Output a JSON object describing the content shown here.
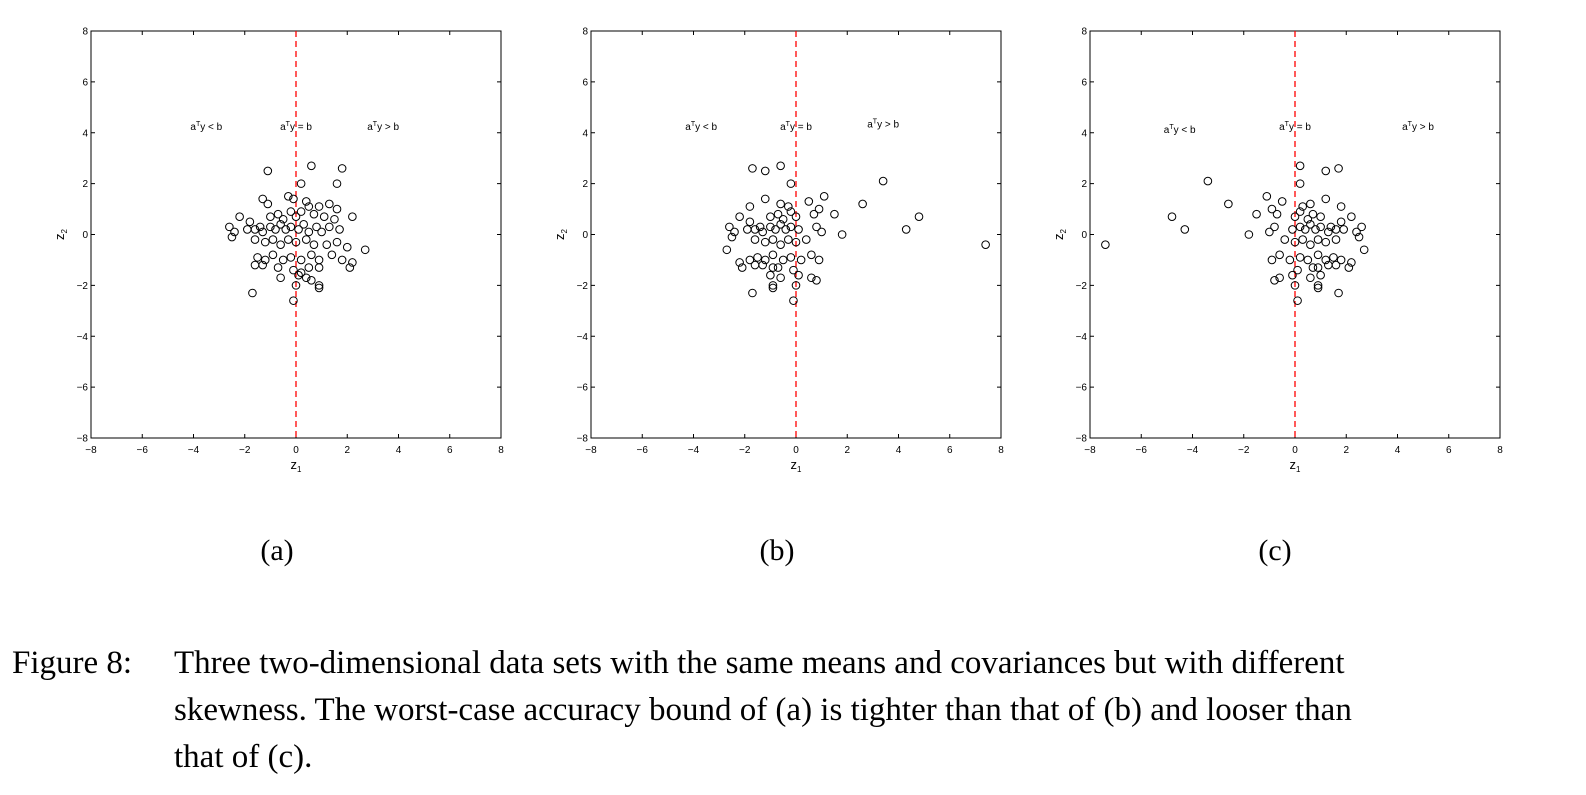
{
  "chart_data": [
    {
      "type": "scatter",
      "panel_label": "(a)",
      "xlabel": "z1",
      "ylabel": "z2",
      "xlim": [
        -8,
        8
      ],
      "ylim": [
        -8,
        8
      ],
      "ticks": [
        -8,
        -6,
        -4,
        -2,
        0,
        2,
        4,
        6,
        8
      ],
      "grid": false,
      "boundary": {
        "x": 0,
        "style": "red dashed"
      },
      "annotations": [
        {
          "label": "a^Ty < b",
          "x": -3.5,
          "y": 4.1
        },
        {
          "label": "a^Ty = b",
          "x": 0.0,
          "y": 4.1
        },
        {
          "label": "a^Ty > b",
          "x": 3.4,
          "y": 4.1
        }
      ],
      "points": [
        [
          -1.1,
          2.5
        ],
        [
          0.6,
          2.7
        ],
        [
          1.8,
          2.6
        ],
        [
          0.2,
          2.0
        ],
        [
          1.6,
          2.0
        ],
        [
          -1.3,
          1.4
        ],
        [
          -1.1,
          1.2
        ],
        [
          0.4,
          1.3
        ],
        [
          1.3,
          1.2
        ],
        [
          -0.3,
          1.5
        ],
        [
          -0.1,
          1.4
        ],
        [
          0.5,
          1.1
        ],
        [
          0.9,
          1.1
        ],
        [
          1.6,
          1.0
        ],
        [
          -2.2,
          0.7
        ],
        [
          -1.8,
          0.5
        ],
        [
          -1.4,
          0.3
        ],
        [
          -1.0,
          0.7
        ],
        [
          -0.7,
          0.8
        ],
        [
          -0.5,
          0.6
        ],
        [
          -0.2,
          0.9
        ],
        [
          0.0,
          0.7
        ],
        [
          0.2,
          0.9
        ],
        [
          0.7,
          0.8
        ],
        [
          1.1,
          0.7
        ],
        [
          1.5,
          0.6
        ],
        [
          2.2,
          0.7
        ],
        [
          -2.6,
          0.3
        ],
        [
          -2.4,
          0.1
        ],
        [
          -2.5,
          -0.1
        ],
        [
          -1.9,
          0.2
        ],
        [
          -1.6,
          0.2
        ],
        [
          -1.3,
          0.1
        ],
        [
          -1.0,
          0.3
        ],
        [
          -0.8,
          0.2
        ],
        [
          -0.6,
          0.4
        ],
        [
          -0.4,
          0.2
        ],
        [
          -0.2,
          0.3
        ],
        [
          0.1,
          0.2
        ],
        [
          0.3,
          0.4
        ],
        [
          0.5,
          0.1
        ],
        [
          0.8,
          0.3
        ],
        [
          1.0,
          0.1
        ],
        [
          1.3,
          0.3
        ],
        [
          1.7,
          0.2
        ],
        [
          -1.6,
          -0.2
        ],
        [
          -1.2,
          -0.3
        ],
        [
          -0.9,
          -0.2
        ],
        [
          -0.6,
          -0.4
        ],
        [
          -0.3,
          -0.2
        ],
        [
          0.0,
          -0.3
        ],
        [
          0.4,
          -0.2
        ],
        [
          0.7,
          -0.4
        ],
        [
          1.2,
          -0.4
        ],
        [
          1.6,
          -0.3
        ],
        [
          2.0,
          -0.5
        ],
        [
          2.7,
          -0.6
        ],
        [
          -1.5,
          -0.9
        ],
        [
          -1.2,
          -1.0
        ],
        [
          -0.9,
          -0.8
        ],
        [
          -0.5,
          -1.0
        ],
        [
          -0.2,
          -0.9
        ],
        [
          0.2,
          -1.0
        ],
        [
          0.6,
          -0.8
        ],
        [
          0.9,
          -1.0
        ],
        [
          1.4,
          -0.8
        ],
        [
          1.8,
          -1.0
        ],
        [
          2.2,
          -1.1
        ],
        [
          -1.6,
          -1.2
        ],
        [
          -1.3,
          -1.2
        ],
        [
          -0.7,
          -1.3
        ],
        [
          -0.1,
          -1.4
        ],
        [
          0.5,
          -1.3
        ],
        [
          0.9,
          -1.3
        ],
        [
          2.1,
          -1.3
        ],
        [
          -0.6,
          -1.7
        ],
        [
          0.1,
          -1.6
        ],
        [
          0.4,
          -1.7
        ],
        [
          0.6,
          -1.8
        ],
        [
          0.9,
          -2.0
        ],
        [
          0.9,
          -2.1
        ],
        [
          -1.7,
          -2.3
        ],
        [
          0.0,
          -2.0
        ],
        [
          -0.1,
          -2.6
        ],
        [
          0.2,
          -1.5
        ]
      ]
    },
    {
      "type": "scatter",
      "panel_label": "(b)",
      "xlabel": "z1",
      "ylabel": "z2",
      "xlim": [
        -8,
        8
      ],
      "ylim": [
        -8,
        8
      ],
      "ticks": [
        -8,
        -6,
        -4,
        -2,
        0,
        2,
        4,
        6,
        8
      ],
      "grid": false,
      "boundary": {
        "x": 0,
        "style": "red dashed"
      },
      "annotations": [
        {
          "label": "a^Ty < b",
          "x": -3.7,
          "y": 4.1
        },
        {
          "label": "a^Ty = b",
          "x": 0.0,
          "y": 4.1
        },
        {
          "label": "a^Ty > b",
          "x": 3.4,
          "y": 4.2
        }
      ],
      "points": [
        [
          -1.7,
          2.6
        ],
        [
          -1.2,
          2.5
        ],
        [
          -0.6,
          2.7
        ],
        [
          -0.2,
          2.0
        ],
        [
          3.4,
          2.1
        ],
        [
          1.1,
          1.5
        ],
        [
          0.5,
          1.3
        ],
        [
          -1.2,
          1.4
        ],
        [
          -0.6,
          1.2
        ],
        [
          -0.3,
          1.1
        ],
        [
          -1.8,
          1.1
        ],
        [
          0.9,
          1.0
        ],
        [
          1.5,
          0.8
        ],
        [
          2.6,
          1.2
        ],
        [
          -2.2,
          0.7
        ],
        [
          -1.8,
          0.5
        ],
        [
          -1.4,
          0.3
        ],
        [
          -1.0,
          0.7
        ],
        [
          -0.7,
          0.8
        ],
        [
          -0.5,
          0.6
        ],
        [
          -0.2,
          0.9
        ],
        [
          0.0,
          0.7
        ],
        [
          0.7,
          0.8
        ],
        [
          4.8,
          0.7
        ],
        [
          -2.6,
          0.3
        ],
        [
          -2.4,
          0.1
        ],
        [
          -1.9,
          0.2
        ],
        [
          -1.6,
          0.2
        ],
        [
          -1.3,
          0.1
        ],
        [
          -1.0,
          0.3
        ],
        [
          -0.8,
          0.2
        ],
        [
          -0.6,
          0.4
        ],
        [
          -0.4,
          0.2
        ],
        [
          -0.2,
          0.3
        ],
        [
          0.1,
          0.2
        ],
        [
          0.8,
          0.3
        ],
        [
          1.0,
          0.1
        ],
        [
          4.3,
          0.2
        ],
        [
          -2.5,
          -0.1
        ],
        [
          -1.6,
          -0.2
        ],
        [
          -1.2,
          -0.3
        ],
        [
          -0.9,
          -0.2
        ],
        [
          -0.6,
          -0.4
        ],
        [
          -0.3,
          -0.2
        ],
        [
          0.0,
          -0.3
        ],
        [
          0.4,
          -0.2
        ],
        [
          1.8,
          0.0
        ],
        [
          7.4,
          -0.4
        ],
        [
          -2.7,
          -0.6
        ],
        [
          -1.5,
          -0.9
        ],
        [
          -1.2,
          -1.0
        ],
        [
          -0.9,
          -0.8
        ],
        [
          -0.5,
          -1.0
        ],
        [
          -0.2,
          -0.9
        ],
        [
          0.2,
          -1.0
        ],
        [
          0.6,
          -0.8
        ],
        [
          0.9,
          -1.0
        ],
        [
          -2.2,
          -1.1
        ],
        [
          -1.8,
          -1.0
        ],
        [
          -1.6,
          -1.2
        ],
        [
          -1.3,
          -1.2
        ],
        [
          -0.7,
          -1.3
        ],
        [
          -0.1,
          -1.4
        ],
        [
          -2.1,
          -1.3
        ],
        [
          -0.9,
          -1.3
        ],
        [
          -0.6,
          -1.7
        ],
        [
          0.1,
          -1.6
        ],
        [
          0.6,
          -1.7
        ],
        [
          0.8,
          -1.8
        ],
        [
          -0.9,
          -2.0
        ],
        [
          -0.9,
          -2.1
        ],
        [
          -1.7,
          -2.3
        ],
        [
          0.0,
          -2.0
        ],
        [
          -0.1,
          -2.6
        ],
        [
          -1.0,
          -1.6
        ]
      ]
    },
    {
      "type": "scatter",
      "panel_label": "(c)",
      "xlabel": "z1",
      "ylabel": "z2",
      "xlim": [
        -8,
        8
      ],
      "ylim": [
        -8,
        8
      ],
      "ticks": [
        -8,
        -6,
        -4,
        -2,
        0,
        2,
        4,
        6,
        8
      ],
      "grid": false,
      "boundary": {
        "x": 0,
        "style": "red dashed"
      },
      "annotations": [
        {
          "label": "a^Ty < b",
          "x": -4.5,
          "y": 4.0
        },
        {
          "label": "a^Ty = b",
          "x": 0.0,
          "y": 4.1
        },
        {
          "label": "a^Ty > b",
          "x": 4.8,
          "y": 4.1
        }
      ],
      "points": [
        [
          0.2,
          2.7
        ],
        [
          1.2,
          2.5
        ],
        [
          1.7,
          2.6
        ],
        [
          -3.4,
          2.1
        ],
        [
          0.2,
          2.0
        ],
        [
          -1.1,
          1.5
        ],
        [
          -2.6,
          1.2
        ],
        [
          -0.5,
          1.3
        ],
        [
          1.2,
          1.4
        ],
        [
          0.6,
          1.2
        ],
        [
          0.3,
          1.1
        ],
        [
          1.8,
          1.1
        ],
        [
          -0.9,
          1.0
        ],
        [
          -1.5,
          0.8
        ],
        [
          -4.8,
          0.7
        ],
        [
          2.2,
          0.7
        ],
        [
          1.8,
          0.5
        ],
        [
          1.4,
          0.3
        ],
        [
          1.0,
          0.7
        ],
        [
          0.7,
          0.8
        ],
        [
          0.5,
          0.6
        ],
        [
          0.2,
          0.9
        ],
        [
          0.0,
          0.7
        ],
        [
          -0.7,
          0.8
        ],
        [
          -4.3,
          0.2
        ],
        [
          2.6,
          0.3
        ],
        [
          2.4,
          0.1
        ],
        [
          1.9,
          0.2
        ],
        [
          1.6,
          0.2
        ],
        [
          1.3,
          0.1
        ],
        [
          1.0,
          0.3
        ],
        [
          0.8,
          0.2
        ],
        [
          0.6,
          0.4
        ],
        [
          0.4,
          0.2
        ],
        [
          0.2,
          0.3
        ],
        [
          -0.1,
          0.2
        ],
        [
          -0.8,
          0.3
        ],
        [
          -1.0,
          0.1
        ],
        [
          -1.8,
          0.0
        ],
        [
          2.5,
          -0.1
        ],
        [
          1.6,
          -0.2
        ],
        [
          1.2,
          -0.3
        ],
        [
          0.9,
          -0.2
        ],
        [
          0.6,
          -0.4
        ],
        [
          0.3,
          -0.2
        ],
        [
          0.0,
          -0.3
        ],
        [
          -0.4,
          -0.2
        ],
        [
          -7.4,
          -0.4
        ],
        [
          2.7,
          -0.6
        ],
        [
          1.5,
          -0.9
        ],
        [
          1.2,
          -1.0
        ],
        [
          0.9,
          -0.8
        ],
        [
          0.5,
          -1.0
        ],
        [
          0.2,
          -0.9
        ],
        [
          -0.2,
          -1.0
        ],
        [
          -0.6,
          -0.8
        ],
        [
          -0.9,
          -1.0
        ],
        [
          2.2,
          -1.1
        ],
        [
          1.8,
          -1.0
        ],
        [
          1.6,
          -1.2
        ],
        [
          1.3,
          -1.2
        ],
        [
          0.7,
          -1.3
        ],
        [
          0.1,
          -1.4
        ],
        [
          2.1,
          -1.3
        ],
        [
          0.9,
          -1.3
        ],
        [
          0.6,
          -1.7
        ],
        [
          -0.1,
          -1.6
        ],
        [
          -0.6,
          -1.7
        ],
        [
          -0.8,
          -1.8
        ],
        [
          0.9,
          -2.0
        ],
        [
          0.9,
          -2.1
        ],
        [
          1.7,
          -2.3
        ],
        [
          0.0,
          -2.0
        ],
        [
          0.1,
          -2.6
        ],
        [
          1.0,
          -1.6
        ]
      ]
    }
  ],
  "figure_caption": {
    "label": "Figure 8:",
    "lines": [
      "Three two-dimensional data sets with the same means and covariances but with different",
      "skewness. The worst-case accuracy bound of (a) is tighter than that of (b) and looser than",
      "that of (c)."
    ]
  }
}
